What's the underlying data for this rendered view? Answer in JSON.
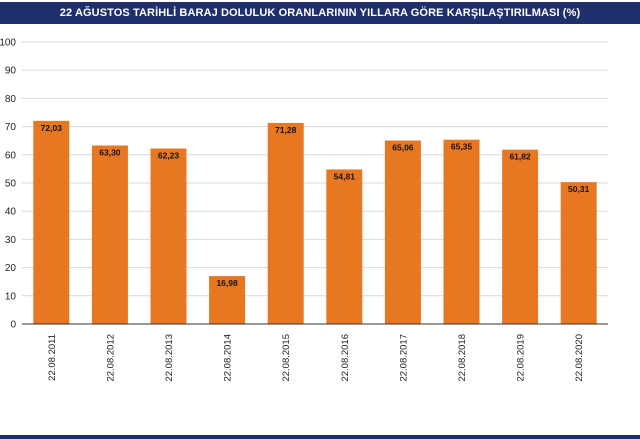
{
  "chart_data": {
    "type": "bar",
    "title": "22 AĞUSTOS TARİHLİ BARAJ DOLULUK ORANLARININ YILLARA GÖRE KARŞILAŞTIRILMASI (%)",
    "categories": [
      "22.08.2011",
      "22.08.2012",
      "22.08.2013",
      "22.08.2014",
      "22.08.2015",
      "22.08.2016",
      "22.08.2017",
      "22.08.2018",
      "22.08.2019",
      "22.08.2020"
    ],
    "values": [
      72.03,
      63.3,
      62.23,
      16.98,
      71.28,
      54.81,
      65.06,
      65.35,
      61.82,
      50.31
    ],
    "data_labels": [
      "72,03",
      "63,30",
      "62,23",
      "16,98",
      "71,28",
      "54,81",
      "65,06",
      "65,35",
      "61,82",
      "50,31"
    ],
    "ylim": [
      0,
      100
    ],
    "yticks": [
      0,
      10,
      20,
      30,
      40,
      50,
      60,
      70,
      80,
      90,
      100
    ],
    "xlabel": "",
    "ylabel": "",
    "grid": true,
    "legend": "none",
    "bar_color": "#e87722"
  },
  "colors": {
    "title_background": "#1f2f6b",
    "title_text": "#ffffff",
    "bar": "#e87722"
  }
}
